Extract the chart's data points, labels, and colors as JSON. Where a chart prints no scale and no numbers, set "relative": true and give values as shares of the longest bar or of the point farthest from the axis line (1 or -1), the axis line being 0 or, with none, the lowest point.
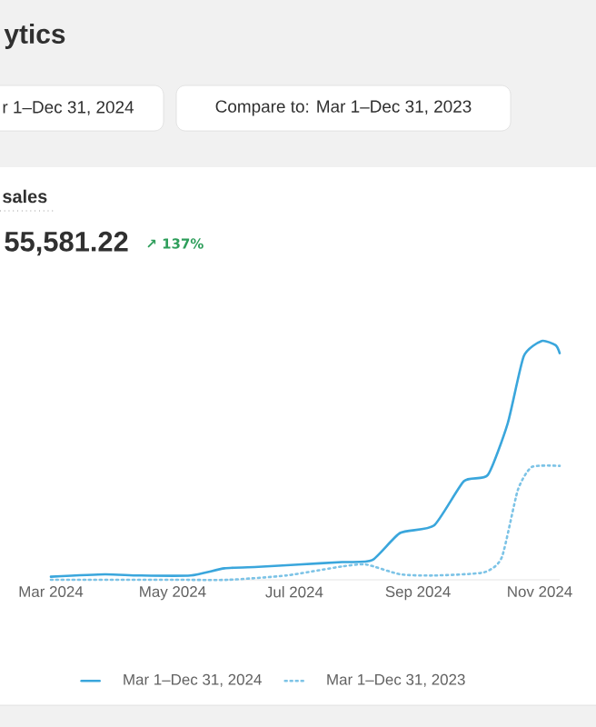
{
  "chart_data": {
    "type": "line",
    "title": "sales",
    "subtitle": "55,581.22",
    "annotations": [
      "ytics",
      "r 1–Dec 31, 2024",
      "Compare to: Mar 1–Dec 31, 2023",
      "↗ 137%"
    ],
    "relative": true,
    "marker": "none",
    "legend": "bottom",
    "xlim": [
      "2024-03-01",
      "2024-11-11"
    ],
    "xticks": [
      {
        "value": "2024-03-01",
        "label": "Mar 2024"
      },
      {
        "value": "2024-05-01",
        "label": "May 2024"
      },
      {
        "value": "2024-07-01",
        "label": "Jul 2024"
      },
      {
        "value": "2024-09-01",
        "label": "Sep 2024"
      },
      {
        "value": "2024-11-01",
        "label": "Nov 2024"
      }
    ],
    "series": [
      {
        "name": "Mar 1–Dec 31, 2024",
        "color": "#3aa6dc",
        "line_style": "solid",
        "x": [
          "2024-03-01",
          "2024-03-28",
          "2024-04-14",
          "2024-05-10",
          "2024-05-27",
          "2024-06-13",
          "2024-07-03",
          "2024-07-25",
          "2024-08-09",
          "2024-08-23",
          "2024-09-09",
          "2024-09-24",
          "2024-10-06",
          "2024-10-16",
          "2024-10-24",
          "2024-11-02",
          "2024-11-09",
          "2024-11-11"
        ],
        "values": [
          0.013,
          0.023,
          0.018,
          0.018,
          0.048,
          0.054,
          0.064,
          0.074,
          0.082,
          0.196,
          0.227,
          0.413,
          0.439,
          0.656,
          0.936,
          1.0,
          0.982,
          0.949
        ]
      },
      {
        "name": "Mar 1–Dec 31, 2023",
        "color": "#7cc3e6",
        "line_style": "dotted",
        "x": [
          "2024-03-01",
          "2024-05-01",
          "2024-05-29",
          "2024-06-27",
          "2024-07-25",
          "2024-08-06",
          "2024-08-23",
          "2024-09-09",
          "2024-10-04",
          "2024-10-13",
          "2024-10-21",
          "2024-10-28",
          "2024-11-11"
        ],
        "values": [
          0.0,
          0.0,
          0.0,
          0.018,
          0.056,
          0.064,
          0.023,
          0.018,
          0.031,
          0.094,
          0.375,
          0.472,
          0.477
        ]
      }
    ]
  }
}
